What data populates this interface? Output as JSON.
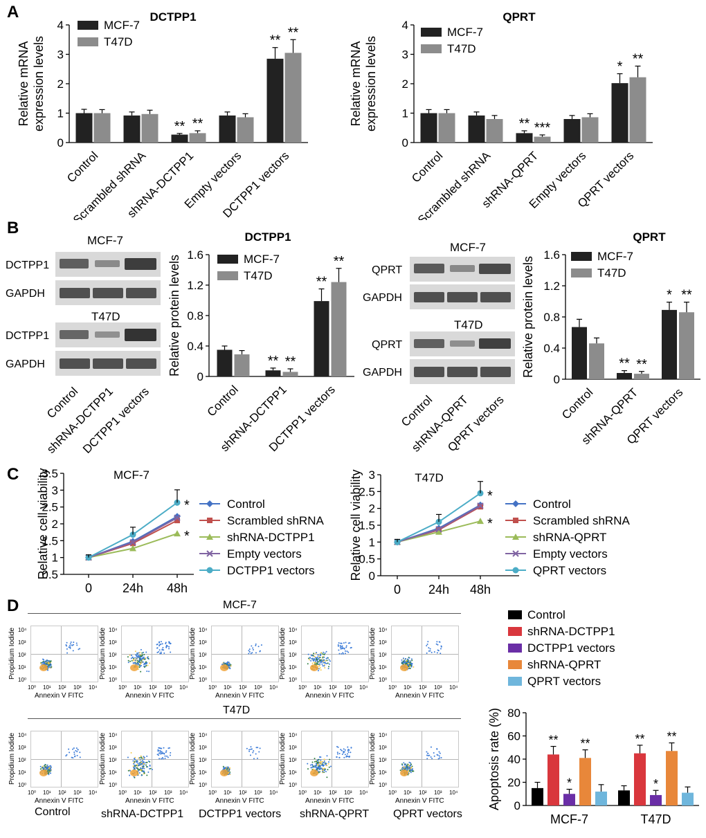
{
  "panel_labels": {
    "a": "A",
    "b": "B",
    "c": "C",
    "d": "D"
  },
  "colors": {
    "mcf7": "#222222",
    "t47d": "#8c8c8c",
    "control": "#4472c4",
    "scrambled": "#c0504d",
    "shrna": "#9bbb59",
    "empty": "#8064a2",
    "vectors": "#4bacc6",
    "d_control": "#000000",
    "d_shdctpp1": "#d9373d",
    "d_dctpp1vec": "#6a2ea6",
    "d_shqprt": "#e8873a",
    "d_qprtvec": "#6fb6dc"
  },
  "blots": {
    "left": {
      "title_top": "MCF-7",
      "title_bottom": "T47D",
      "protein": "DCTPP1",
      "loading": "GAPDH",
      "lanes": [
        "Control",
        "shRNA-DCTPP1",
        "DCTPP1 vectors"
      ]
    },
    "right": {
      "title_top": "MCF-7",
      "title_bottom": "T47D",
      "protein": "QPRT",
      "loading": "GAPDH",
      "lanes": [
        "Control",
        "shRNA-QPRT",
        "QPRT vectors"
      ]
    }
  },
  "flow": {
    "row1_title": "MCF-7",
    "row2_title": "T47D",
    "ylabel": "Propidium Iodide",
    "xlabel": "Annexin V FITC",
    "ticks": [
      "10⁰",
      "10¹",
      "10²",
      "10³",
      "10⁴"
    ],
    "samples": [
      "Control",
      "shRNA-DCTPP1",
      "DCTPP1 vectors",
      "shRNA-QPRT",
      "QPRT vectors"
    ]
  },
  "chart_data": [
    {
      "id": "A1",
      "type": "bar",
      "title": "DCTPP1",
      "ylabel": "Relative mRNA\nexpression levels",
      "ylim": [
        0,
        4
      ],
      "yticks": [
        "0",
        "1",
        "2",
        "3",
        "4"
      ],
      "categories": [
        "Control",
        "Scrambled shRNA",
        "shRNA-DCTPP1",
        "Empty vectors",
        "DCTPP1 vectors"
      ],
      "series": [
        {
          "name": "MCF-7",
          "values": [
            1.0,
            0.92,
            0.27,
            0.92,
            2.85
          ],
          "errors": [
            0.13,
            0.12,
            0.04,
            0.12,
            0.38
          ],
          "marks": [
            "",
            "",
            "**",
            "",
            "**"
          ]
        },
        {
          "name": "T47D",
          "values": [
            1.0,
            0.97,
            0.32,
            0.86,
            3.05
          ],
          "errors": [
            0.12,
            0.13,
            0.08,
            0.12,
            0.45
          ],
          "marks": [
            "",
            "",
            "**",
            "",
            "**"
          ]
        }
      ],
      "legend": "top-left"
    },
    {
      "id": "A2",
      "type": "bar",
      "title": "QPRT",
      "ylabel": "Relative mRNA\nexpression levels",
      "ylim": [
        0,
        4
      ],
      "yticks": [
        "0",
        "1",
        "2",
        "3",
        "4"
      ],
      "categories": [
        "Control",
        "Scrambled shRNA",
        "shRNA-QPRT",
        "Empty vectors",
        "QPRT vectors"
      ],
      "series": [
        {
          "name": "MCF-7",
          "values": [
            1.0,
            0.92,
            0.32,
            0.8,
            2.02
          ],
          "errors": [
            0.12,
            0.12,
            0.08,
            0.12,
            0.32
          ],
          "marks": [
            "",
            "",
            "**",
            "",
            "*"
          ]
        },
        {
          "name": "T47D",
          "values": [
            1.0,
            0.8,
            0.2,
            0.86,
            2.22
          ],
          "errors": [
            0.12,
            0.12,
            0.06,
            0.12,
            0.38
          ],
          "marks": [
            "",
            "",
            "***",
            "",
            "**"
          ]
        }
      ],
      "legend": "top-left"
    },
    {
      "id": "B1",
      "type": "bar",
      "title": "DCTPP1",
      "ylabel": "Relative protein levels",
      "ylim": [
        0,
        1.6
      ],
      "yticks": [
        "0",
        "0.4",
        "0.8",
        "1.2",
        "1.6"
      ],
      "categories": [
        "Control",
        "shRNA-DCTPP1",
        "DCTPP1 vectors"
      ],
      "series": [
        {
          "name": "MCF-7",
          "values": [
            0.35,
            0.08,
            0.99
          ],
          "errors": [
            0.05,
            0.03,
            0.16
          ],
          "marks": [
            "",
            "**",
            "**"
          ]
        },
        {
          "name": "T47D",
          "values": [
            0.29,
            0.06,
            1.24
          ],
          "errors": [
            0.05,
            0.04,
            0.18
          ],
          "marks": [
            "",
            "**",
            "**"
          ]
        }
      ],
      "legend": "top-left"
    },
    {
      "id": "B2",
      "type": "bar",
      "title": "QPRT",
      "ylabel": "Relative protein levels",
      "ylim": [
        0,
        1.6
      ],
      "yticks": [
        "0",
        "0.4",
        "0.8",
        "1.2",
        "1.6"
      ],
      "categories": [
        "Control",
        "shRNA-QPRT",
        "QPRT vectors"
      ],
      "series": [
        {
          "name": "MCF-7",
          "values": [
            0.67,
            0.08,
            0.89
          ],
          "errors": [
            0.1,
            0.03,
            0.1
          ],
          "marks": [
            "",
            "**",
            "*"
          ]
        },
        {
          "name": "T47D",
          "values": [
            0.46,
            0.07,
            0.86
          ],
          "errors": [
            0.07,
            0.03,
            0.13
          ],
          "marks": [
            "",
            "**",
            "**"
          ]
        }
      ],
      "legend": "top-left"
    },
    {
      "id": "C1",
      "type": "line",
      "title": "MCF-7",
      "ylabel": "Relative cell viability",
      "ylim": [
        0.5,
        3.5
      ],
      "yticks": [
        "0.5",
        "1",
        "1.5",
        "2",
        "2.5",
        "3",
        "3.5"
      ],
      "x": [
        "0",
        "24h",
        "48h"
      ],
      "series": [
        {
          "name": "Control",
          "values": [
            1.0,
            1.48,
            2.22
          ]
        },
        {
          "name": "Scrambled shRNA",
          "values": [
            1.0,
            1.42,
            2.1
          ]
        },
        {
          "name": "shRNA-DCTPP1",
          "values": [
            1.0,
            1.27,
            1.71
          ]
        },
        {
          "name": "Empty vectors",
          "values": [
            1.0,
            1.45,
            2.18
          ]
        },
        {
          "name": "DCTPP1 vectors",
          "values": [
            1.0,
            1.68,
            2.63
          ]
        }
      ],
      "errors": [
        0.08,
        0.22,
        0.38
      ],
      "marks": [
        {
          "series": "DCTPP1 vectors",
          "text": "*"
        },
        {
          "series": "shRNA-DCTPP1",
          "text": "*"
        }
      ],
      "legend": "right"
    },
    {
      "id": "C2",
      "type": "line",
      "title": "T47D",
      "ylabel": "Relative cell viability",
      "ylim": [
        0,
        3
      ],
      "yticks": [
        "0",
        "0.5",
        "1",
        "1.5",
        "2",
        "2.5",
        "3"
      ],
      "x": [
        "0",
        "24h",
        "48h"
      ],
      "series": [
        {
          "name": "Control",
          "values": [
            1.0,
            1.41,
            2.1
          ]
        },
        {
          "name": "Scrambled shRNA",
          "values": [
            1.0,
            1.36,
            2.05
          ]
        },
        {
          "name": "shRNA-QPRT",
          "values": [
            1.0,
            1.3,
            1.62
          ]
        },
        {
          "name": "Empty vectors",
          "values": [
            1.0,
            1.38,
            2.08
          ]
        },
        {
          "name": "QPRT vectors",
          "values": [
            1.0,
            1.6,
            2.45
          ]
        }
      ],
      "errors": [
        0.08,
        0.22,
        0.35
      ],
      "marks": [
        {
          "series": "QPRT vectors",
          "text": "*"
        },
        {
          "series": "shRNA-QPRT",
          "text": "*"
        }
      ],
      "legend": "right"
    },
    {
      "id": "D",
      "type": "bar",
      "title": "",
      "ylabel": "Apoptosis rate (%)",
      "ylim": [
        0,
        80
      ],
      "yticks": [
        "0",
        "20",
        "40",
        "60",
        "80"
      ],
      "categories": [
        "MCF-7",
        "T47D"
      ],
      "series": [
        {
          "name": "Control",
          "values": [
            15,
            13
          ],
          "errors": [
            5,
            4
          ],
          "marks": [
            "",
            ""
          ]
        },
        {
          "name": "shRNA-DCTPP1",
          "values": [
            44,
            45
          ],
          "errors": [
            7,
            7
          ],
          "marks": [
            "**",
            "**"
          ]
        },
        {
          "name": "DCTPP1 vectors",
          "values": [
            10,
            9
          ],
          "errors": [
            4,
            4
          ],
          "marks": [
            "*",
            "*"
          ]
        },
        {
          "name": "shRNA-QPRT",
          "values": [
            41,
            47
          ],
          "errors": [
            7,
            7
          ],
          "marks": [
            "**",
            "**"
          ]
        },
        {
          "name": "QPRT vectors",
          "values": [
            12,
            11
          ],
          "errors": [
            6,
            5
          ],
          "marks": [
            "",
            ""
          ]
        }
      ],
      "legend": "top"
    }
  ]
}
